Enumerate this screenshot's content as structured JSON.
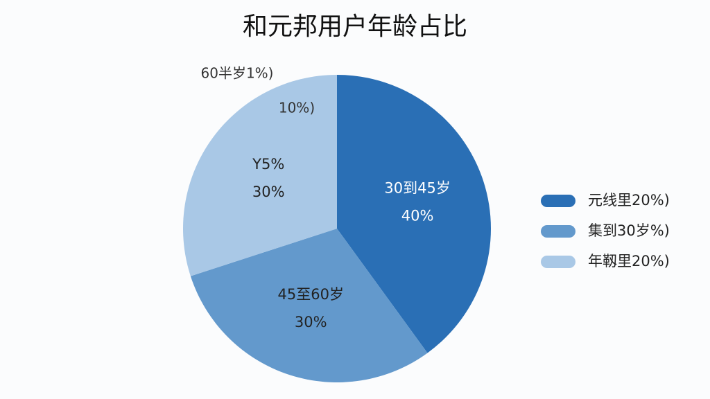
{
  "chart_data": {
    "type": "pie",
    "title": "和元邦用户年龄占比",
    "categories": [
      "30到45岁",
      "45至60岁",
      "Y5%"
    ],
    "values": [
      40,
      30,
      30
    ],
    "value_labels": [
      "40%",
      "30%",
      "30%"
    ],
    "colors": [
      "#2a6fb5",
      "#6399cc",
      "#a9c8e6"
    ],
    "annotations": [
      "10%)",
      "60半岁1%)"
    ],
    "legend": [
      {
        "label": "元线里20%)",
        "color": "#2a6fb5"
      },
      {
        "label": "集到30岁%)",
        "color": "#6399cc"
      },
      {
        "label": "年靱里20%)",
        "color": "#a9c8e6"
      }
    ]
  }
}
